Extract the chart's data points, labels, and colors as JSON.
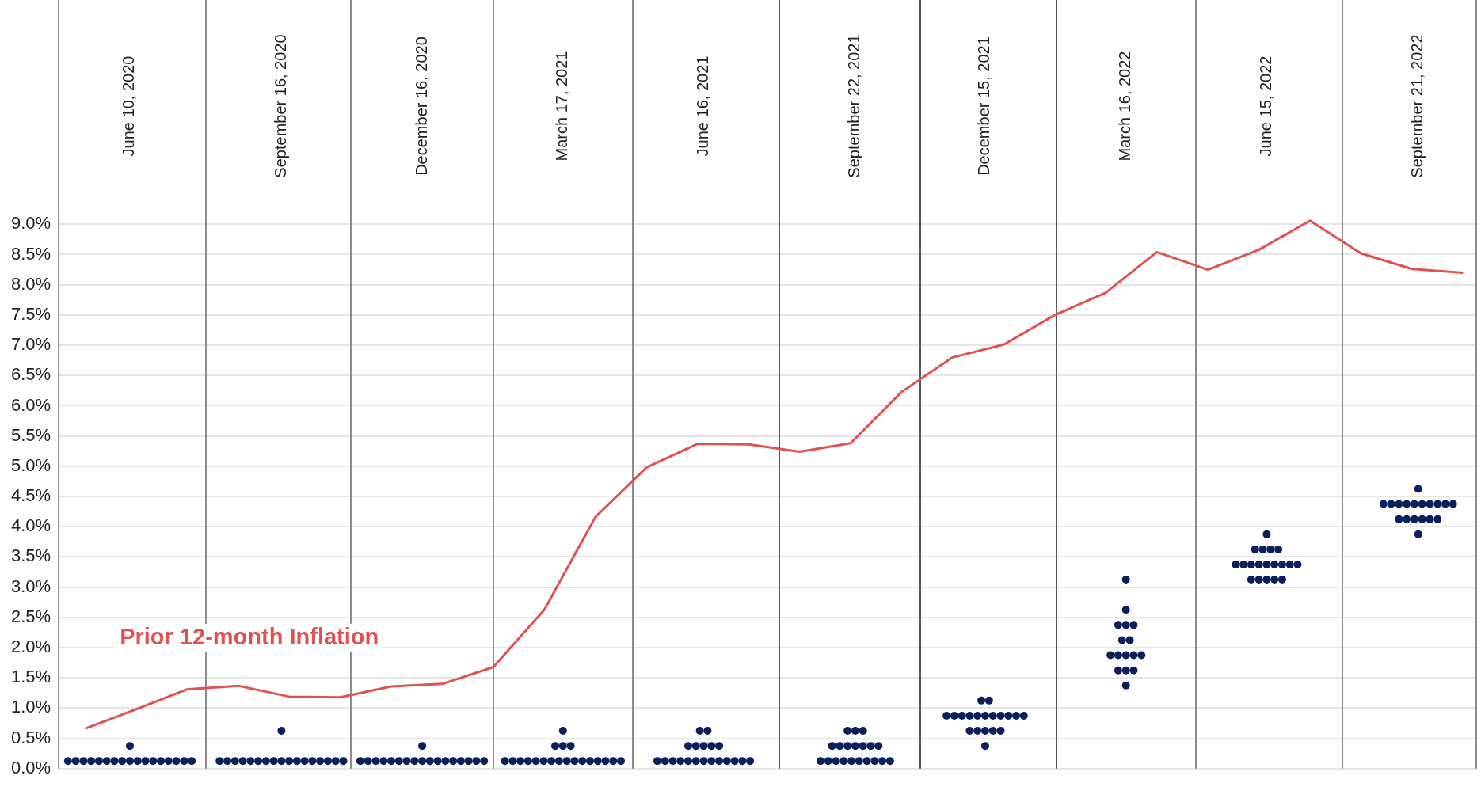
{
  "chart_data": {
    "type": "scatter",
    "grid": "y",
    "xlim": [
      "2020-04-25",
      "2022-10-29"
    ],
    "ylim": [
      0,
      9.2
    ],
    "xticks": [
      {
        "value": "2020-06-10",
        "label": "June 10, 2020"
      },
      {
        "value": "2020-09-16",
        "label": "September 16, 2020"
      },
      {
        "value": "2020-12-16",
        "label": "December 16, 2020"
      },
      {
        "value": "2021-03-17",
        "label": "March 17, 2021"
      },
      {
        "value": "2021-06-16",
        "label": "June 16, 2021"
      },
      {
        "value": "2021-09-22",
        "label": "September 22, 2021"
      },
      {
        "value": "2021-12-15",
        "label": "December 15, 2021"
      },
      {
        "value": "2022-03-16",
        "label": "March 16, 2022"
      },
      {
        "value": "2022-06-15",
        "label": "June 15, 2022"
      },
      {
        "value": "2022-09-21",
        "label": "September 21, 2022"
      }
    ],
    "yticks": [
      {
        "value": 0,
        "label": "0.0%"
      },
      {
        "value": 0.5,
        "label": "0.5%"
      },
      {
        "value": 1,
        "label": "1.0%"
      },
      {
        "value": 1.5,
        "label": "1.5%"
      },
      {
        "value": 2,
        "label": "2.0%"
      },
      {
        "value": 2.5,
        "label": "2.5%"
      },
      {
        "value": 3,
        "label": "3.0%"
      },
      {
        "value": 3.5,
        "label": "3.5%"
      },
      {
        "value": 4,
        "label": "4.0%"
      },
      {
        "value": 4.5,
        "label": "4.5%"
      },
      {
        "value": 5,
        "label": "5.0%"
      },
      {
        "value": 5.5,
        "label": "5.5%"
      },
      {
        "value": 6,
        "label": "6.0%"
      },
      {
        "value": 6.5,
        "label": "6.5%"
      },
      {
        "value": 7,
        "label": "7.0%"
      },
      {
        "value": 7.5,
        "label": "7.5%"
      },
      {
        "value": 8,
        "label": "8.0%"
      },
      {
        "value": 8.5,
        "label": "8.5%"
      },
      {
        "value": 9,
        "label": "9.0%"
      }
    ],
    "ref_lines": [
      {
        "axis": "x",
        "value": "2020-07-29",
        "color": "#8c8c8c"
      },
      {
        "axis": "x",
        "value": "2020-10-31",
        "color": "#8c8c8c"
      },
      {
        "axis": "x",
        "value": "2021-01-31",
        "color": "#8c8c8c"
      },
      {
        "axis": "x",
        "value": "2021-05-01",
        "color": "#8c8c8c"
      },
      {
        "axis": "x",
        "value": "2021-08-04",
        "color": "#595959"
      },
      {
        "axis": "x",
        "value": "2021-11-03",
        "color": "#595959"
      },
      {
        "axis": "x",
        "value": "2022-01-30",
        "color": "#595959"
      },
      {
        "axis": "x",
        "value": "2022-04-30",
        "color": "#8c8c8c"
      },
      {
        "axis": "x",
        "value": "2022-08-03",
        "color": "#8c8c8c"
      }
    ],
    "series": [
      {
        "type": "line",
        "name": "Prior 12-month Inflation",
        "color": "#e05252",
        "marker": "none",
        "line_style": "solid",
        "x": [
          "2020-05-12",
          "2020-06-14",
          "2020-07-17",
          "2020-08-19",
          "2020-09-21",
          "2020-10-24",
          "2020-11-26",
          "2020-12-29",
          "2021-01-31",
          "2021-03-05",
          "2021-04-07",
          "2021-05-10",
          "2021-06-12",
          "2021-07-15",
          "2021-08-17",
          "2021-09-19",
          "2021-10-22",
          "2021-11-24",
          "2021-12-27",
          "2022-01-29",
          "2022-03-03",
          "2022-04-05",
          "2022-05-08",
          "2022-06-10",
          "2022-07-13",
          "2022-08-15",
          "2022-09-17",
          "2022-10-20"
        ],
        "values": [
          0.66,
          0.98,
          1.31,
          1.37,
          1.19,
          1.18,
          1.36,
          1.4,
          1.68,
          2.63,
          4.16,
          4.98,
          5.37,
          5.36,
          5.24,
          5.38,
          6.23,
          6.8,
          7.01,
          7.5,
          7.87,
          8.54,
          8.25,
          8.58,
          9.06,
          8.52,
          8.26,
          8.2
        ]
      },
      {
        "type": "scatter",
        "color": "#0a1f5c",
        "marker": "circle",
        "x": [
          "2020-05-01",
          "2020-05-06",
          "2020-05-11",
          "2020-05-16",
          "2020-05-21",
          "2020-05-26",
          "2020-05-31",
          "2020-06-05",
          "2020-06-10",
          "2020-06-15",
          "2020-06-20",
          "2020-06-25",
          "2020-06-30",
          "2020-07-05",
          "2020-07-10",
          "2020-07-15",
          "2020-07-20",
          "2020-06-10"
        ],
        "values": [
          0.125,
          0.125,
          0.125,
          0.125,
          0.125,
          0.125,
          0.125,
          0.125,
          0.125,
          0.125,
          0.125,
          0.125,
          0.125,
          0.125,
          0.125,
          0.125,
          0.125,
          0.375
        ]
      },
      {
        "type": "scatter",
        "color": "#0a1f5c",
        "marker": "circle",
        "x": [
          "2020-08-07",
          "2020-08-12",
          "2020-08-17",
          "2020-08-22",
          "2020-08-27",
          "2020-09-01",
          "2020-09-06",
          "2020-09-11",
          "2020-09-16",
          "2020-09-21",
          "2020-09-26",
          "2020-10-01",
          "2020-10-06",
          "2020-10-11",
          "2020-10-16",
          "2020-10-21",
          "2020-10-26",
          "2020-09-16"
        ],
        "values": [
          0.125,
          0.125,
          0.125,
          0.125,
          0.125,
          0.125,
          0.125,
          0.125,
          0.125,
          0.125,
          0.125,
          0.125,
          0.125,
          0.125,
          0.125,
          0.125,
          0.125,
          0.625
        ]
      },
      {
        "type": "scatter",
        "color": "#0a1f5c",
        "marker": "circle",
        "x": [
          "2020-11-06",
          "2020-11-11",
          "2020-11-16",
          "2020-11-21",
          "2020-11-26",
          "2020-12-01",
          "2020-12-06",
          "2020-12-11",
          "2020-12-16",
          "2020-12-21",
          "2020-12-26",
          "2020-12-31",
          "2021-01-05",
          "2021-01-10",
          "2021-01-15",
          "2021-01-20",
          "2021-01-25",
          "2020-12-16"
        ],
        "values": [
          0.125,
          0.125,
          0.125,
          0.125,
          0.125,
          0.125,
          0.125,
          0.125,
          0.125,
          0.125,
          0.125,
          0.125,
          0.125,
          0.125,
          0.125,
          0.125,
          0.125,
          0.375
        ]
      },
      {
        "type": "scatter",
        "color": "#0a1f5c",
        "marker": "circle",
        "x": [
          "2021-02-07T12:00",
          "2021-02-12T12:00",
          "2021-02-17T12:00",
          "2021-02-22T12:00",
          "2021-02-27T12:00",
          "2021-03-04T12:00",
          "2021-03-09T12:00",
          "2021-03-14T12:00",
          "2021-03-19T12:00",
          "2021-03-24T12:00",
          "2021-03-29T12:00",
          "2021-04-03T12:00",
          "2021-04-08T12:00",
          "2021-04-13T12:00",
          "2021-04-18T12:00",
          "2021-04-23T12:00",
          "2021-03-12",
          "2021-03-17",
          "2021-03-22",
          "2021-03-17"
        ],
        "values": [
          0.125,
          0.125,
          0.125,
          0.125,
          0.125,
          0.125,
          0.125,
          0.125,
          0.125,
          0.125,
          0.125,
          0.125,
          0.125,
          0.125,
          0.125,
          0.125,
          0.375,
          0.375,
          0.375,
          0.625
        ]
      },
      {
        "type": "scatter",
        "color": "#0a1f5c",
        "marker": "circle",
        "x": [
          "2021-05-17",
          "2021-05-22",
          "2021-05-27",
          "2021-06-01",
          "2021-06-06",
          "2021-06-11",
          "2021-06-16",
          "2021-06-21",
          "2021-06-26",
          "2021-07-01",
          "2021-07-06",
          "2021-07-11",
          "2021-07-16",
          "2021-06-06",
          "2021-06-11",
          "2021-06-16",
          "2021-06-21",
          "2021-06-26",
          "2021-06-13T12:00",
          "2021-06-18T12:00"
        ],
        "values": [
          0.125,
          0.125,
          0.125,
          0.125,
          0.125,
          0.125,
          0.125,
          0.125,
          0.125,
          0.125,
          0.125,
          0.125,
          0.125,
          0.375,
          0.375,
          0.375,
          0.375,
          0.375,
          0.625,
          0.625
        ]
      },
      {
        "type": "scatter",
        "color": "#0a1f5c",
        "marker": "circle",
        "x": [
          "2021-08-30T12:00",
          "2021-09-04T12:00",
          "2021-09-09T12:00",
          "2021-09-14T12:00",
          "2021-09-19T12:00",
          "2021-09-24T12:00",
          "2021-09-29T12:00",
          "2021-10-04T12:00",
          "2021-10-09T12:00",
          "2021-10-14T12:00",
          "2021-09-07",
          "2021-09-12",
          "2021-09-17",
          "2021-09-22",
          "2021-09-27",
          "2021-10-02",
          "2021-10-07",
          "2021-09-17",
          "2021-09-22",
          "2021-09-27"
        ],
        "values": [
          0.125,
          0.125,
          0.125,
          0.125,
          0.125,
          0.125,
          0.125,
          0.125,
          0.125,
          0.125,
          0.375,
          0.375,
          0.375,
          0.375,
          0.375,
          0.375,
          0.375,
          0.625,
          0.625,
          0.625
        ]
      },
      {
        "type": "scatter",
        "color": "#0a1f5c",
        "marker": "circle",
        "x": [
          "2021-12-15",
          "2021-12-05",
          "2021-12-10",
          "2021-12-15",
          "2021-12-20",
          "2021-12-25",
          "2021-11-20",
          "2021-11-25",
          "2021-11-30",
          "2021-12-05",
          "2021-12-10",
          "2021-12-15",
          "2021-12-20",
          "2021-12-25",
          "2021-12-30",
          "2022-01-04",
          "2022-01-09",
          "2021-12-12T12:00",
          "2021-12-17T12:00"
        ],
        "values": [
          0.375,
          0.625,
          0.625,
          0.625,
          0.625,
          0.625,
          0.875,
          0.875,
          0.875,
          0.875,
          0.875,
          0.875,
          0.875,
          0.875,
          0.875,
          0.875,
          0.875,
          1.125,
          1.125
        ]
      },
      {
        "type": "scatter",
        "color": "#0a1f5c",
        "marker": "circle",
        "x": [
          "2022-03-16",
          "2022-03-11",
          "2022-03-16",
          "2022-03-21",
          "2022-03-06",
          "2022-03-11",
          "2022-03-16",
          "2022-03-21",
          "2022-03-26",
          "2022-03-13T12:00",
          "2022-03-18T12:00",
          "2022-03-11",
          "2022-03-16",
          "2022-03-21",
          "2022-03-16",
          "2022-03-16"
        ],
        "values": [
          1.375,
          1.625,
          1.625,
          1.625,
          1.875,
          1.875,
          1.875,
          1.875,
          1.875,
          2.125,
          2.125,
          2.375,
          2.375,
          2.375,
          2.625,
          3.125
        ]
      },
      {
        "type": "scatter",
        "color": "#0a1f5c",
        "marker": "circle",
        "x": [
          "2022-06-05",
          "2022-06-10",
          "2022-06-15",
          "2022-06-20",
          "2022-06-25",
          "2022-05-26",
          "2022-05-31",
          "2022-06-05",
          "2022-06-10",
          "2022-06-15",
          "2022-06-20",
          "2022-06-25",
          "2022-06-30",
          "2022-07-05",
          "2022-06-07T12:00",
          "2022-06-12T12:00",
          "2022-06-17T12:00",
          "2022-06-22T12:00",
          "2022-06-15"
        ],
        "values": [
          3.125,
          3.125,
          3.125,
          3.125,
          3.125,
          3.375,
          3.375,
          3.375,
          3.375,
          3.375,
          3.375,
          3.375,
          3.375,
          3.375,
          3.625,
          3.625,
          3.625,
          3.625,
          3.875
        ]
      },
      {
        "type": "scatter",
        "color": "#0a1f5c",
        "marker": "circle",
        "x": [
          "2022-09-21",
          "2022-09-08T12:00",
          "2022-09-13T12:00",
          "2022-09-18T12:00",
          "2022-09-23T12:00",
          "2022-09-28T12:00",
          "2022-10-03T12:00",
          "2022-08-29T12:00",
          "2022-09-03T12:00",
          "2022-09-08T12:00",
          "2022-09-13T12:00",
          "2022-09-18T12:00",
          "2022-09-23T12:00",
          "2022-09-28T12:00",
          "2022-10-03T12:00",
          "2022-10-08T12:00",
          "2022-10-13T12:00",
          "2022-09-21"
        ],
        "values": [
          3.875,
          4.125,
          4.125,
          4.125,
          4.125,
          4.125,
          4.125,
          4.375,
          4.375,
          4.375,
          4.375,
          4.375,
          4.375,
          4.375,
          4.375,
          4.375,
          4.375,
          4.625
        ]
      }
    ]
  }
}
